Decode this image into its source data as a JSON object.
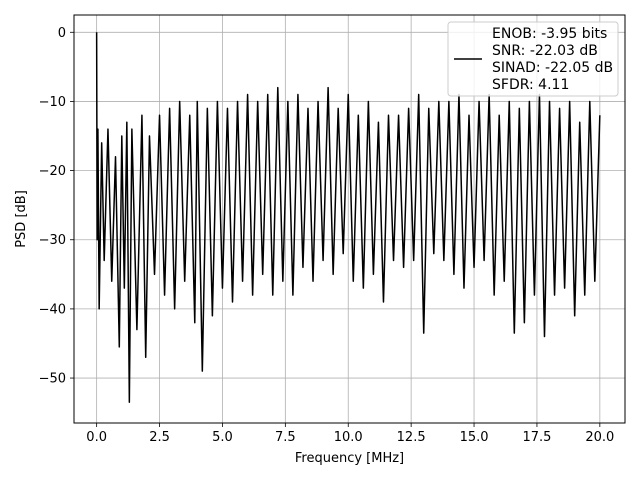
{
  "chart_data": {
    "type": "line",
    "xlabel": "Frequency [MHz]",
    "ylabel": "PSD [dB]",
    "xlim": [
      -0.9,
      21.0
    ],
    "ylim": [
      -56.5,
      2.5
    ],
    "xticks": [
      0.0,
      2.5,
      5.0,
      7.5,
      10.0,
      12.5,
      15.0,
      17.5,
      20.0
    ],
    "xtick_labels": [
      "0.0",
      "2.5",
      "5.0",
      "7.5",
      "10.0",
      "12.5",
      "15.0",
      "17.5",
      "20.0"
    ],
    "yticks": [
      0,
      -10,
      -20,
      -30,
      -40,
      -50
    ],
    "ytick_labels": [
      "0",
      "−10",
      "−20",
      "−30",
      "−40",
      "−50"
    ],
    "grid": true,
    "legend_position": "top-right",
    "legend_entries": [
      "ENOB: -3.95 bits",
      "SNR: -22.03 dB",
      "SINAD: -22.05 dB",
      "SFDR: 4.11"
    ],
    "series_color": "#000000",
    "series": [
      {
        "x": [
          0.0,
          0.02,
          0.05,
          0.1,
          0.2,
          0.3,
          0.45,
          0.6,
          0.75,
          0.9,
          1.0,
          1.1,
          1.2,
          1.3,
          1.4,
          1.6,
          1.8,
          1.95,
          2.1,
          2.3,
          2.5,
          2.7,
          2.9,
          3.1,
          3.3,
          3.5,
          3.7,
          3.9,
          4.0,
          4.2,
          4.4,
          4.6,
          4.8,
          5.0,
          5.2,
          5.4,
          5.6,
          5.8,
          6.0,
          6.2,
          6.4,
          6.6,
          6.8,
          7.0,
          7.2,
          7.4,
          7.6,
          7.8,
          8.0,
          8.2,
          8.4,
          8.6,
          8.8,
          9.0,
          9.2,
          9.4,
          9.6,
          9.8,
          10.0,
          10.2,
          10.4,
          10.6,
          10.8,
          11.0,
          11.2,
          11.4,
          11.6,
          11.8,
          12.0,
          12.2,
          12.4,
          12.6,
          12.8,
          13.0,
          13.2,
          13.4,
          13.6,
          13.8,
          14.0,
          14.2,
          14.4,
          14.6,
          14.8,
          15.0,
          15.2,
          15.4,
          15.6,
          15.8,
          16.0,
          16.2,
          16.4,
          16.6,
          16.8,
          17.0,
          17.2,
          17.4,
          17.6,
          17.8,
          18.0,
          18.2,
          18.4,
          18.6,
          18.8,
          19.0,
          19.2,
          19.4,
          19.6,
          19.8,
          20.0
        ],
        "y": [
          0.0,
          -30.0,
          -14.0,
          -40.0,
          -16.0,
          -33.0,
          -14.0,
          -36.0,
          -18.0,
          -45.5,
          -15.0,
          -37.0,
          -13.0,
          -53.5,
          -14.0,
          -43.0,
          -12.0,
          -47.0,
          -15.0,
          -35.0,
          -12.0,
          -38.0,
          -11.0,
          -40.0,
          -10.0,
          -36.0,
          -12.0,
          -42.0,
          -10.0,
          -49.0,
          -11.0,
          -41.0,
          -10.0,
          -37.0,
          -11.0,
          -39.0,
          -10.0,
          -36.0,
          -9.0,
          -38.0,
          -10.0,
          -35.0,
          -9.0,
          -38.0,
          -8.0,
          -36.0,
          -10.0,
          -38.0,
          -9.0,
          -34.0,
          -11.0,
          -36.0,
          -10.0,
          -33.0,
          -8.0,
          -35.0,
          -11.0,
          -32.0,
          -9.0,
          -36.0,
          -12.0,
          -37.0,
          -10.0,
          -35.0,
          -13.0,
          -39.0,
          -12.0,
          -33.0,
          -12.0,
          -34.0,
          -11.0,
          -33.0,
          -9.0,
          -43.5,
          -11.0,
          -32.0,
          -10.0,
          -33.0,
          -10.0,
          -35.0,
          -9.0,
          -37.0,
          -12.0,
          -34.0,
          -10.0,
          -33.0,
          -9.0,
          -38.0,
          -12.0,
          -36.0,
          -10.0,
          -43.5,
          -11.0,
          -42.0,
          -10.0,
          -38.0,
          -9.0,
          -44.0,
          -10.0,
          -38.0,
          -11.0,
          -37.0,
          -10.0,
          -41.0,
          -13.0,
          -38.0,
          -10.0,
          -36.0,
          -12.0
        ]
      }
    ]
  }
}
